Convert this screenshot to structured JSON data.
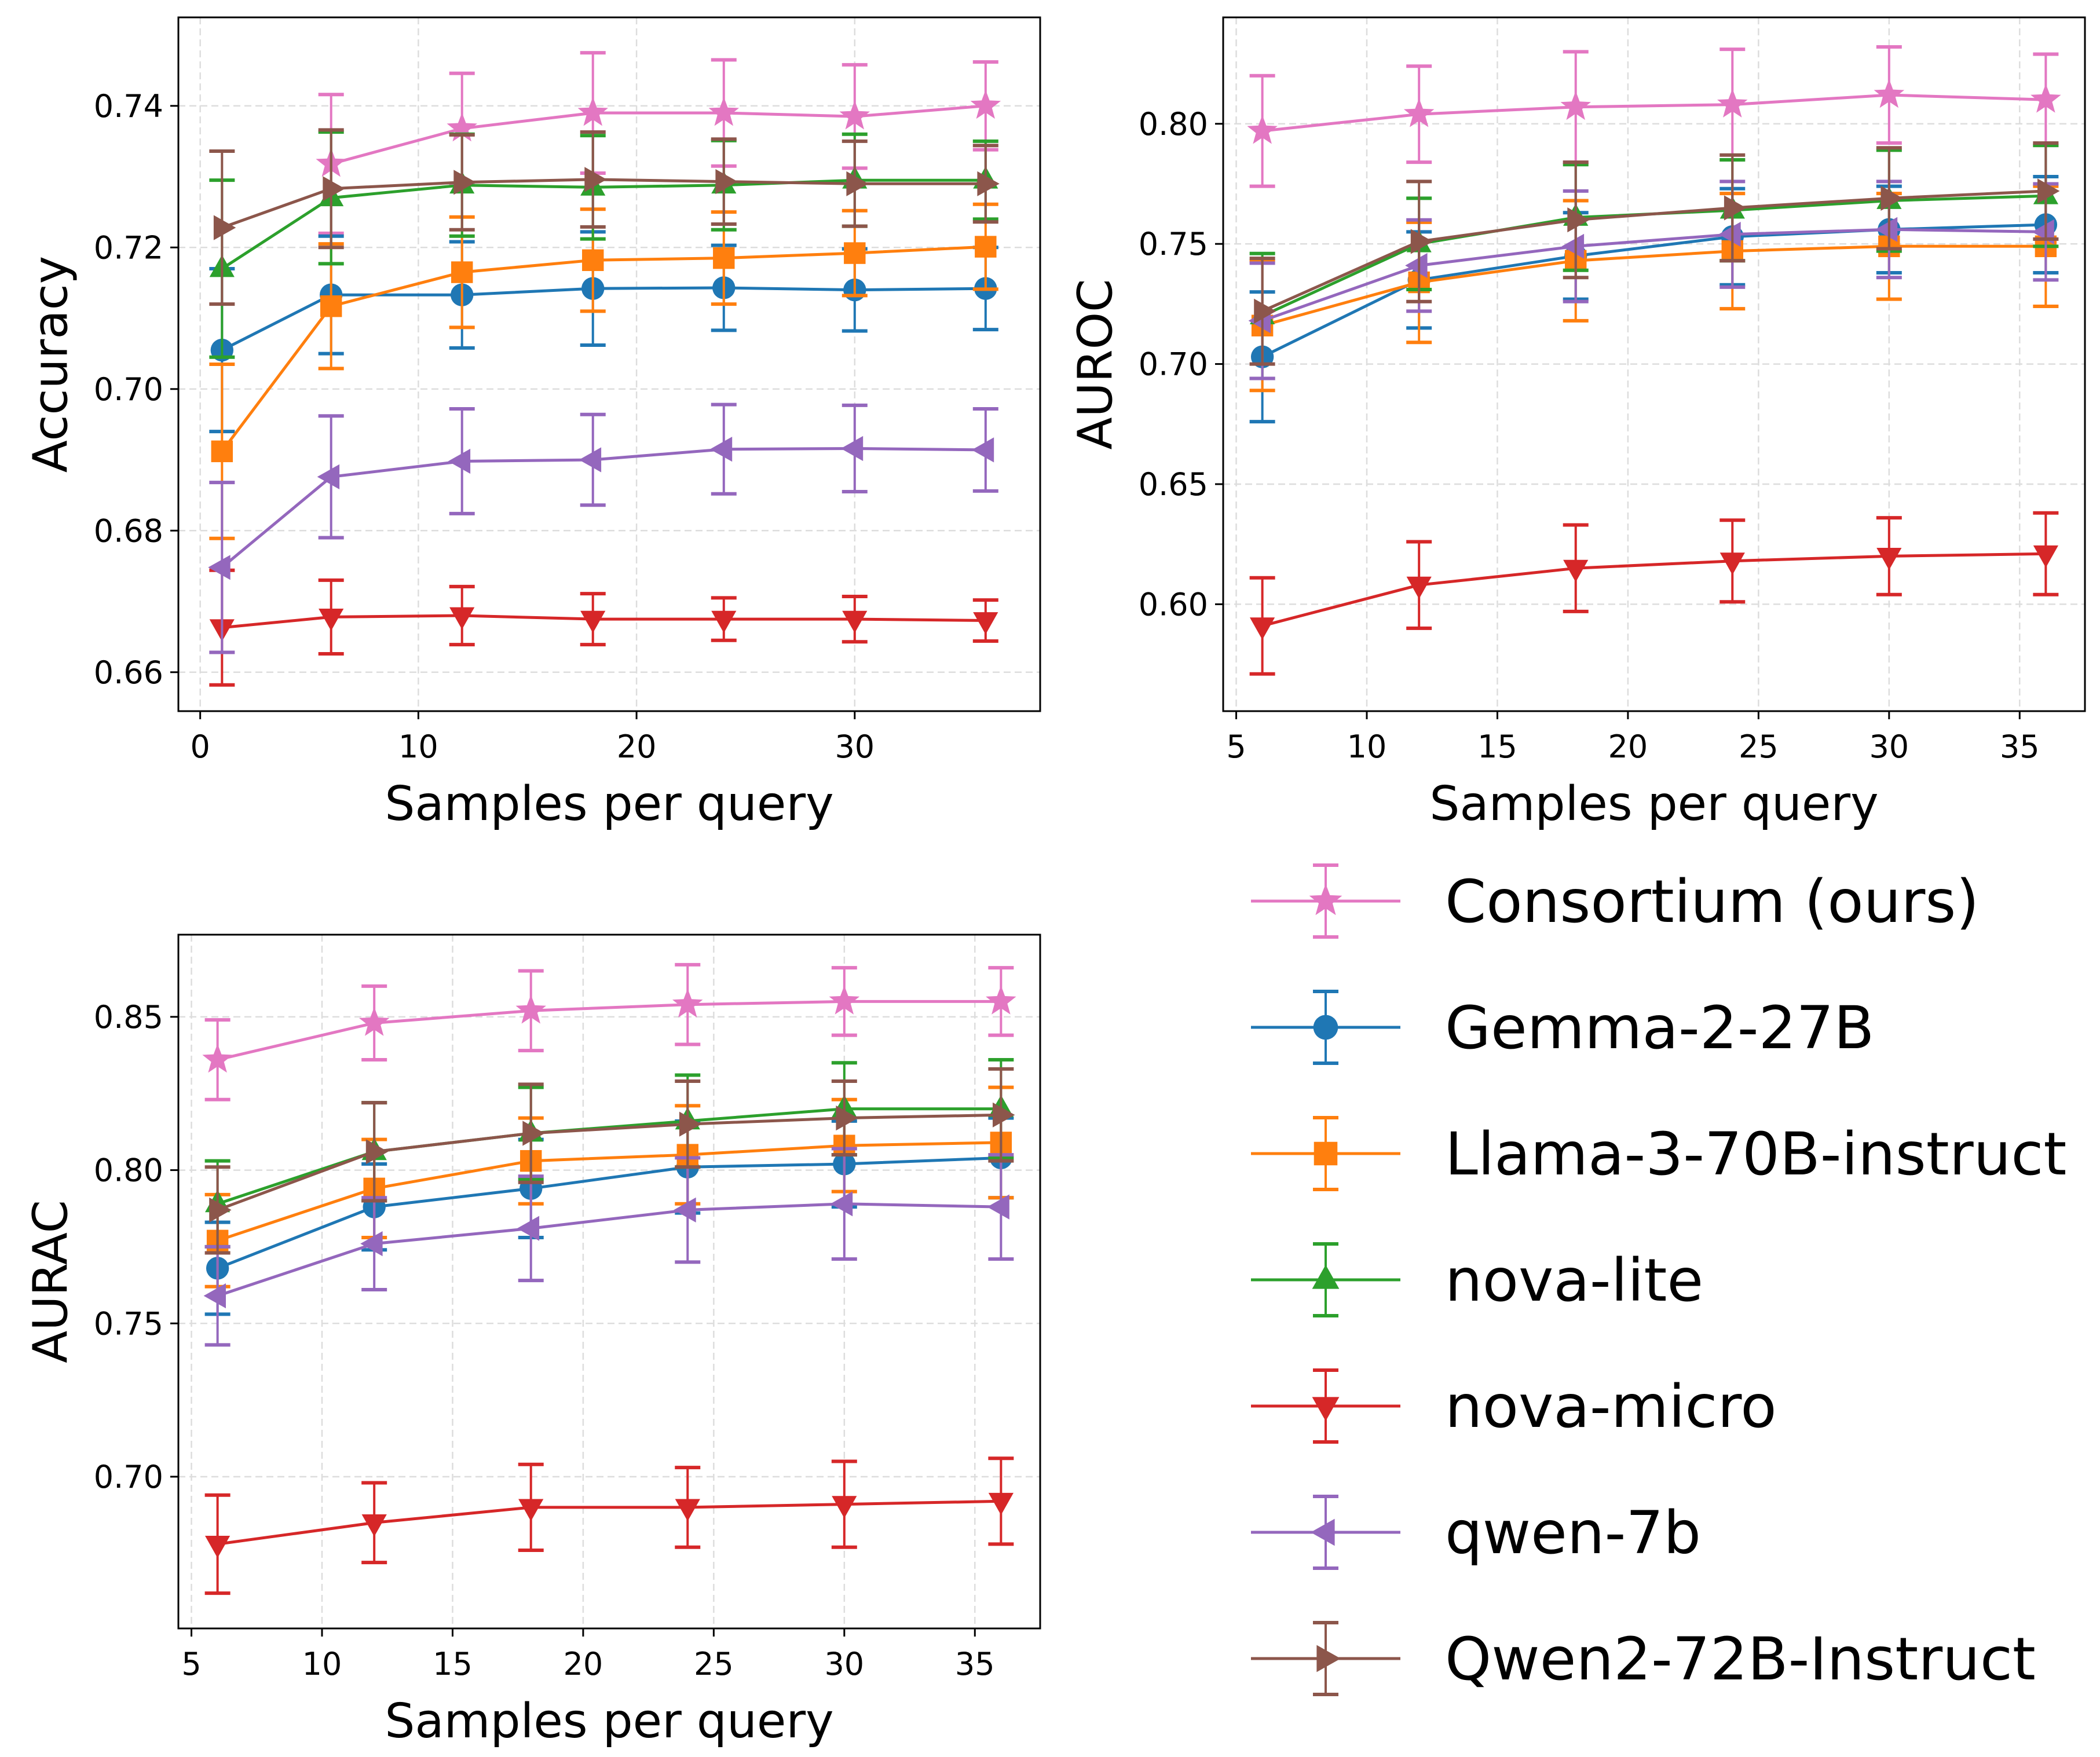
{
  "chart_data": [
    {
      "type": "line",
      "ylabel": "Accuracy",
      "xlabel": "Samples per query",
      "grid": true,
      "xlim": [
        -1,
        38.5
      ],
      "ylim": [
        0.6545,
        0.7525
      ],
      "xticks": [
        0,
        10,
        20,
        30
      ],
      "yticks": [
        0.66,
        0.68,
        0.7,
        0.72,
        0.74
      ],
      "x": [
        1,
        6,
        12,
        18,
        24,
        30,
        36
      ],
      "series": [
        {
          "name": "Consortium (ours)",
          "values": [
            null,
            0.7318,
            0.7368,
            0.739,
            0.739,
            0.7385,
            0.74
          ],
          "err": [
            null,
            0.0098,
            0.0078,
            0.0085,
            0.0075,
            0.0073,
            0.0062
          ]
        },
        {
          "name": "Gemma-2-27B",
          "values": [
            0.7055,
            0.7133,
            0.7133,
            0.7142,
            0.7143,
            0.714,
            0.7142
          ],
          "err": [
            0.0115,
            0.0083,
            0.0075,
            0.008,
            0.006,
            0.0058,
            0.0058
          ]
        },
        {
          "name": "Llama-3-70B-instruct",
          "values": [
            0.6912,
            0.7117,
            0.7165,
            0.7182,
            0.7185,
            0.7192,
            0.7201
          ],
          "err": [
            0.0123,
            0.0088,
            0.0078,
            0.0072,
            0.0065,
            0.006,
            0.006
          ]
        },
        {
          "name": "nova-lite",
          "values": [
            0.717,
            0.727,
            0.7288,
            0.7285,
            0.7288,
            0.7295,
            0.7295
          ],
          "err": [
            0.0125,
            0.0093,
            0.0072,
            0.0073,
            0.0063,
            0.0065,
            0.0055
          ]
        },
        {
          "name": "nova-micro",
          "values": [
            0.6663,
            0.6678,
            0.668,
            0.6675,
            0.6675,
            0.6675,
            0.6673
          ],
          "err": [
            0.0081,
            0.0052,
            0.0041,
            0.0036,
            0.003,
            0.0032,
            0.0029
          ]
        },
        {
          "name": "qwen-7b",
          "values": [
            0.6748,
            0.6876,
            0.6898,
            0.69,
            0.6915,
            0.6916,
            0.6914
          ],
          "err": [
            0.012,
            0.0086,
            0.0074,
            0.0064,
            0.0063,
            0.0061,
            0.0058
          ]
        },
        {
          "name": "Qwen2-72B-Instruct",
          "values": [
            0.7228,
            0.7283,
            0.7292,
            0.7296,
            0.7293,
            0.729,
            0.729
          ],
          "err": [
            0.0108,
            0.0083,
            0.0067,
            0.0067,
            0.006,
            0.006,
            0.0054
          ]
        }
      ]
    },
    {
      "type": "line",
      "ylabel": "AUROC",
      "xlabel": "Samples per query",
      "grid": true,
      "xlim": [
        4.5,
        37.5
      ],
      "ylim": [
        0.5555,
        0.8443
      ],
      "xticks": [
        5,
        10,
        15,
        20,
        25,
        30,
        35
      ],
      "yticks": [
        0.6,
        0.65,
        0.7,
        0.75,
        0.8
      ],
      "x": [
        6,
        12,
        18,
        24,
        30,
        36
      ],
      "series": [
        {
          "name": "Consortium (ours)",
          "values": [
            0.797,
            0.804,
            0.807,
            0.808,
            0.812,
            0.81
          ],
          "err": [
            0.023,
            0.02,
            0.023,
            0.023,
            0.02,
            0.019
          ]
        },
        {
          "name": "Gemma-2-27B",
          "values": [
            0.703,
            0.735,
            0.745,
            0.753,
            0.756,
            0.758
          ],
          "err": [
            0.027,
            0.02,
            0.018,
            0.02,
            0.018,
            0.02
          ]
        },
        {
          "name": "Llama-3-70B-instruct",
          "values": [
            0.716,
            0.734,
            0.743,
            0.747,
            0.749,
            0.749
          ],
          "err": [
            0.027,
            0.025,
            0.025,
            0.024,
            0.022,
            0.025
          ]
        },
        {
          "name": "nova-lite",
          "values": [
            0.72,
            0.75,
            0.761,
            0.764,
            0.768,
            0.77
          ],
          "err": [
            0.026,
            0.019,
            0.022,
            0.021,
            0.021,
            0.021
          ]
        },
        {
          "name": "nova-micro",
          "values": [
            0.591,
            0.608,
            0.615,
            0.618,
            0.62,
            0.621
          ],
          "err": [
            0.02,
            0.018,
            0.018,
            0.017,
            0.016,
            0.017
          ]
        },
        {
          "name": "qwen-7b",
          "values": [
            0.718,
            0.741,
            0.749,
            0.754,
            0.756,
            0.755
          ],
          "err": [
            0.024,
            0.019,
            0.023,
            0.022,
            0.02,
            0.02
          ]
        },
        {
          "name": "Qwen2-72B-Instruct",
          "values": [
            0.722,
            0.751,
            0.76,
            0.765,
            0.769,
            0.772
          ],
          "err": [
            0.022,
            0.025,
            0.024,
            0.022,
            0.021,
            0.02
          ]
        }
      ]
    },
    {
      "type": "line",
      "ylabel": "AURAC",
      "xlabel": "Samples per query",
      "grid": true,
      "xlim": [
        4.5,
        37.5
      ],
      "ylim": [
        0.6505,
        0.8768
      ],
      "xticks": [
        5,
        10,
        15,
        20,
        25,
        30,
        35
      ],
      "yticks": [
        0.7,
        0.75,
        0.8,
        0.85
      ],
      "x": [
        6,
        12,
        18,
        24,
        30,
        36
      ],
      "series": [
        {
          "name": "Consortium (ours)",
          "values": [
            0.836,
            0.848,
            0.852,
            0.854,
            0.855,
            0.855
          ],
          "err": [
            0.013,
            0.012,
            0.013,
            0.013,
            0.011,
            0.011
          ]
        },
        {
          "name": "Gemma-2-27B",
          "values": [
            0.768,
            0.788,
            0.794,
            0.801,
            0.802,
            0.804
          ],
          "err": [
            0.015,
            0.014,
            0.016,
            0.015,
            0.014,
            0.013
          ]
        },
        {
          "name": "Llama-3-70B-instruct",
          "values": [
            0.777,
            0.794,
            0.803,
            0.805,
            0.808,
            0.809
          ],
          "err": [
            0.015,
            0.016,
            0.014,
            0.016,
            0.015,
            0.018
          ]
        },
        {
          "name": "nova-lite",
          "values": [
            0.789,
            0.806,
            0.812,
            0.816,
            0.82,
            0.82
          ],
          "err": [
            0.014,
            0.016,
            0.015,
            0.015,
            0.015,
            0.016
          ]
        },
        {
          "name": "nova-micro",
          "values": [
            0.678,
            0.685,
            0.69,
            0.69,
            0.691,
            0.692
          ],
          "err": [
            0.016,
            0.013,
            0.014,
            0.013,
            0.014,
            0.014
          ]
        },
        {
          "name": "qwen-7b",
          "values": [
            0.759,
            0.776,
            0.781,
            0.787,
            0.789,
            0.788
          ],
          "err": [
            0.016,
            0.015,
            0.017,
            0.017,
            0.018,
            0.017
          ]
        },
        {
          "name": "Qwen2-72B-Instruct",
          "values": [
            0.787,
            0.806,
            0.812,
            0.815,
            0.817,
            0.818
          ],
          "err": [
            0.014,
            0.016,
            0.016,
            0.014,
            0.012,
            0.015
          ]
        }
      ]
    }
  ],
  "legend": [
    {
      "name": "Consortium (ours)",
      "color": "#e377c2",
      "marker": "star"
    },
    {
      "name": "Gemma-2-27B",
      "color": "#1f77b4",
      "marker": "circle"
    },
    {
      "name": "Llama-3-70B-instruct",
      "color": "#ff7f0e",
      "marker": "square"
    },
    {
      "name": "nova-lite",
      "color": "#2ca02c",
      "marker": "triangle-up"
    },
    {
      "name": "nova-micro",
      "color": "#d62728",
      "marker": "triangle-down"
    },
    {
      "name": "qwen-7b",
      "color": "#9467bd",
      "marker": "triangle-left"
    },
    {
      "name": "Qwen2-72B-Instruct",
      "color": "#8c564b",
      "marker": "triangle-right"
    }
  ]
}
